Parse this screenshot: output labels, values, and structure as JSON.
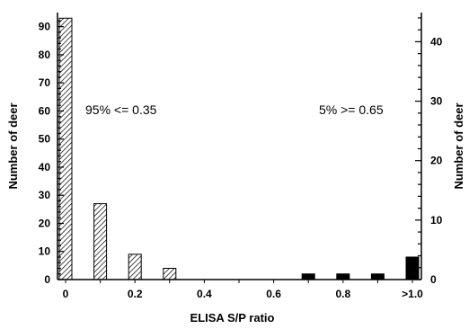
{
  "chart_data": {
    "type": "bar",
    "categories": [
      "0",
      "0.1",
      "0.2",
      "0.3",
      "0.4",
      "0.5",
      "0.6",
      "0.7",
      "0.8",
      "0.9",
      ">1.0"
    ],
    "values": [
      93,
      27,
      9,
      4,
      0,
      0,
      0,
      2,
      2,
      2,
      8
    ],
    "right_axis_values": [
      44,
      12.7,
      4.2,
      1.9,
      0,
      0,
      0,
      0.9,
      0.9,
      0.9,
      3.8
    ],
    "bar_styles": [
      "hatched",
      "hatched",
      "hatched",
      "hatched",
      "none",
      "none",
      "none",
      "solid",
      "solid",
      "solid",
      "solid"
    ],
    "xtick_labels": [
      {
        "label": "0",
        "at": 0
      },
      {
        "label": "0.2",
        "at": 2
      },
      {
        "label": "0.4",
        "at": 4
      },
      {
        "label": "0.6",
        "at": 6
      },
      {
        "label": "0.8",
        "at": 8
      },
      {
        "label": ">1.0",
        "at": 10
      }
    ],
    "xlabel": "ELISA S/P ratio",
    "ylabel": "Number of deer",
    "ylabel_right": "Number of deer",
    "ylim": [
      0,
      95
    ],
    "ylim_right": [
      0,
      44.9
    ],
    "yticks": [
      0,
      10,
      20,
      30,
      40,
      50,
      60,
      70,
      80,
      90
    ],
    "yticks_right": [
      0,
      10,
      20,
      30,
      40
    ],
    "annotations": [
      "95% <= 0.35",
      "5% >= 0.65"
    ],
    "grid": false
  }
}
